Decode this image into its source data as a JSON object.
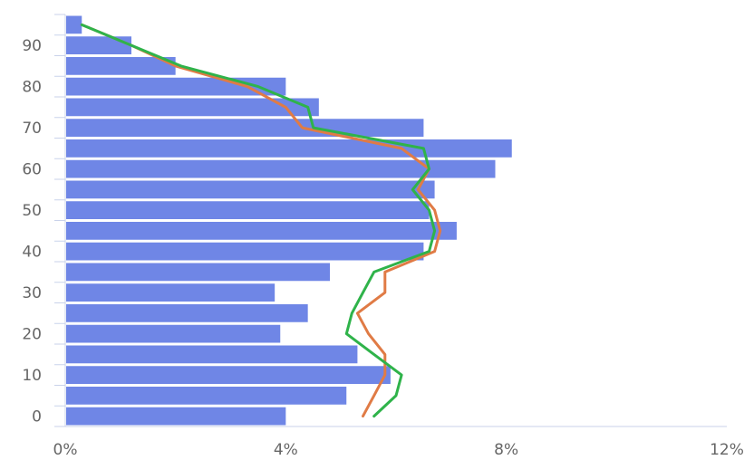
{
  "chart_data": {
    "type": "bar",
    "orientation": "horizontal",
    "y_categories": [
      0,
      5,
      10,
      15,
      20,
      25,
      30,
      35,
      40,
      45,
      50,
      55,
      60,
      65,
      70,
      75,
      80,
      85,
      90,
      95
    ],
    "y_tick_labels": [
      "0",
      "10",
      "20",
      "30",
      "40",
      "50",
      "60",
      "70",
      "80",
      "90"
    ],
    "x_tick_labels": [
      "0%",
      "4%",
      "8%",
      "12%"
    ],
    "xlim": [
      0,
      12
    ],
    "grid": false,
    "series": [
      {
        "type": "bar",
        "color": "#6f86e6",
        "values": [
          4.0,
          5.1,
          5.9,
          5.3,
          3.9,
          4.4,
          3.8,
          4.8,
          6.5,
          7.1,
          6.6,
          6.7,
          7.8,
          8.1,
          6.5,
          4.6,
          4.0,
          2.0,
          1.2,
          0.3
        ]
      },
      {
        "type": "line",
        "color": "#e07b45",
        "values": [
          5.4,
          5.6,
          5.8,
          5.8,
          5.5,
          5.3,
          5.8,
          5.8,
          6.7,
          6.8,
          6.7,
          6.4,
          6.6,
          6.1,
          4.3,
          4.0,
          3.3,
          2.0,
          1.2,
          0.3
        ]
      },
      {
        "type": "line",
        "color": "#2fb34a",
        "values": [
          5.6,
          6.0,
          6.1,
          5.6,
          5.1,
          5.2,
          5.4,
          5.6,
          6.6,
          6.7,
          6.6,
          6.3,
          6.6,
          6.5,
          4.5,
          4.4,
          3.5,
          2.1,
          1.2,
          0.3
        ]
      }
    ]
  }
}
